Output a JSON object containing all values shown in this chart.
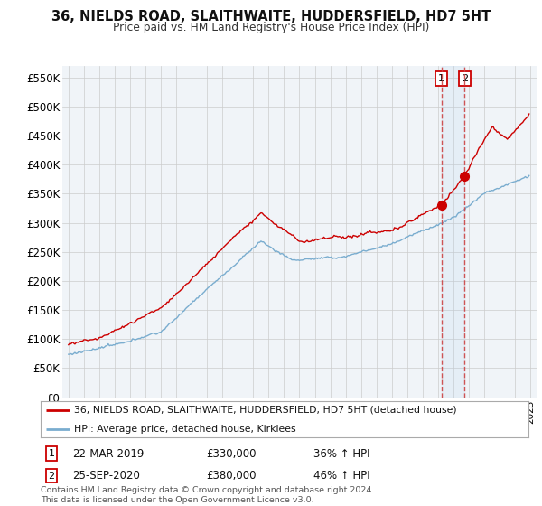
{
  "title": "36, NIELDS ROAD, SLAITHWAITE, HUDDERSFIELD, HD7 5HT",
  "subtitle": "Price paid vs. HM Land Registry's House Price Index (HPI)",
  "ylim": [
    0,
    570000
  ],
  "yticks": [
    0,
    50000,
    100000,
    150000,
    200000,
    250000,
    300000,
    350000,
    400000,
    450000,
    500000,
    550000
  ],
  "ytick_labels": [
    "£0",
    "£50K",
    "£100K",
    "£150K",
    "£200K",
    "£250K",
    "£300K",
    "£350K",
    "£400K",
    "£450K",
    "£500K",
    "£550K"
  ],
  "line1_color": "#cc0000",
  "line2_color": "#7aadcf",
  "legend1_label": "36, NIELDS ROAD, SLAITHWAITE, HUDDERSFIELD, HD7 5HT (detached house)",
  "legend2_label": "HPI: Average price, detached house, Kirklees",
  "sale1_date": "22-MAR-2019",
  "sale1_price": 330000,
  "sale1_pct": "36%",
  "sale2_date": "25-SEP-2020",
  "sale2_price": 380000,
  "sale2_pct": "46%",
  "sale1_x": 2019.22,
  "sale2_x": 2020.73,
  "footnote": "Contains HM Land Registry data © Crown copyright and database right 2024.\nThis data is licensed under the Open Government Licence v3.0.",
  "background_color": "#ffffff",
  "grid_color": "#cccccc",
  "chart_bg": "#f0f4f8"
}
